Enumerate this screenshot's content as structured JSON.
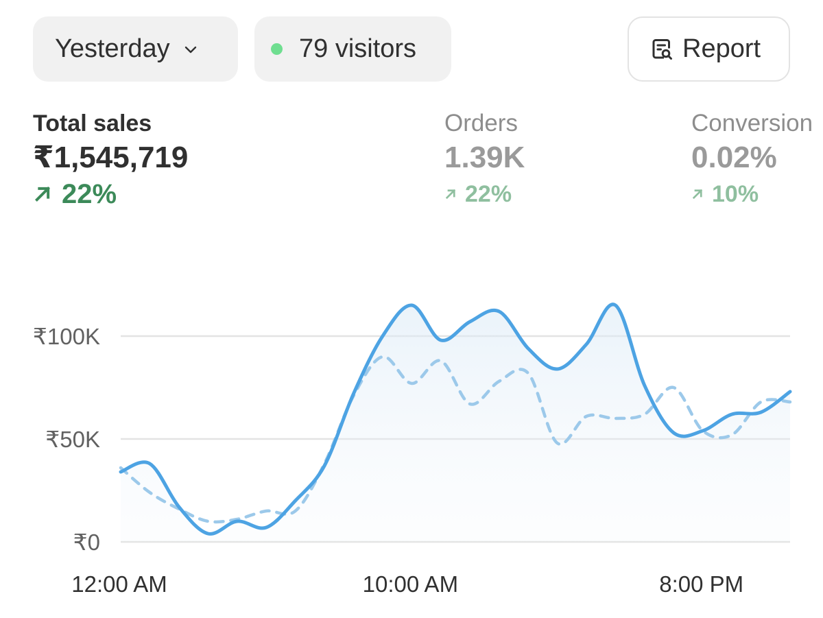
{
  "filters": {
    "date_label": "Yesterday",
    "visitors_label": "79 visitors"
  },
  "actions": {
    "report_label": "Report"
  },
  "metrics": {
    "sales": {
      "label": "Total sales",
      "value": "₹1,545,719",
      "change": "22%"
    },
    "orders": {
      "label": "Orders",
      "value": "1.39K",
      "change": "22%"
    },
    "conversion": {
      "label": "Conversion",
      "value": "0.02%",
      "change": "10%"
    }
  },
  "colors": {
    "accent_line": "#4da3e3",
    "compare_line": "#9cc9ea",
    "positive": "#3c8a59",
    "live_dot": "#6fde90"
  },
  "chart_data": {
    "type": "line",
    "x": [
      "12:00 AM",
      "1:00 AM",
      "2:00 AM",
      "3:00 AM",
      "4:00 AM",
      "5:00 AM",
      "6:00 AM",
      "7:00 AM",
      "8:00 AM",
      "9:00 AM",
      "10:00 AM",
      "11:00 AM",
      "12:00 PM",
      "1:00 PM",
      "2:00 PM",
      "3:00 PM",
      "4:00 PM",
      "5:00 PM",
      "6:00 PM",
      "7:00 PM",
      "8:00 PM",
      "9:00 PM",
      "10:00 PM",
      "11:00 PM"
    ],
    "x_tick_labels": [
      "12:00 AM",
      "10:00 AM",
      "8:00 PM"
    ],
    "x_tick_indices": [
      0,
      10,
      20
    ],
    "y_tick_labels": [
      "₹0",
      "₹50K",
      "₹100K"
    ],
    "y_tick_values": [
      0,
      50000,
      100000
    ],
    "ylim": [
      0,
      120000
    ],
    "series": [
      {
        "values": [
          34000,
          38000,
          17000,
          4000,
          10000,
          7000,
          20000,
          37000,
          72000,
          100000,
          115000,
          98000,
          107000,
          112000,
          94000,
          84000,
          96000,
          115000,
          76000,
          53000,
          54000,
          62000,
          63000,
          73000
        ]
      },
      {
        "values": [
          36000,
          24000,
          16000,
          10000,
          11000,
          15000,
          15000,
          38000,
          71000,
          90000,
          77000,
          88000,
          67000,
          78000,
          82000,
          48000,
          61000,
          60000,
          62000,
          75000,
          54000,
          52000,
          68000,
          68000
        ]
      }
    ],
    "grid": true
  }
}
